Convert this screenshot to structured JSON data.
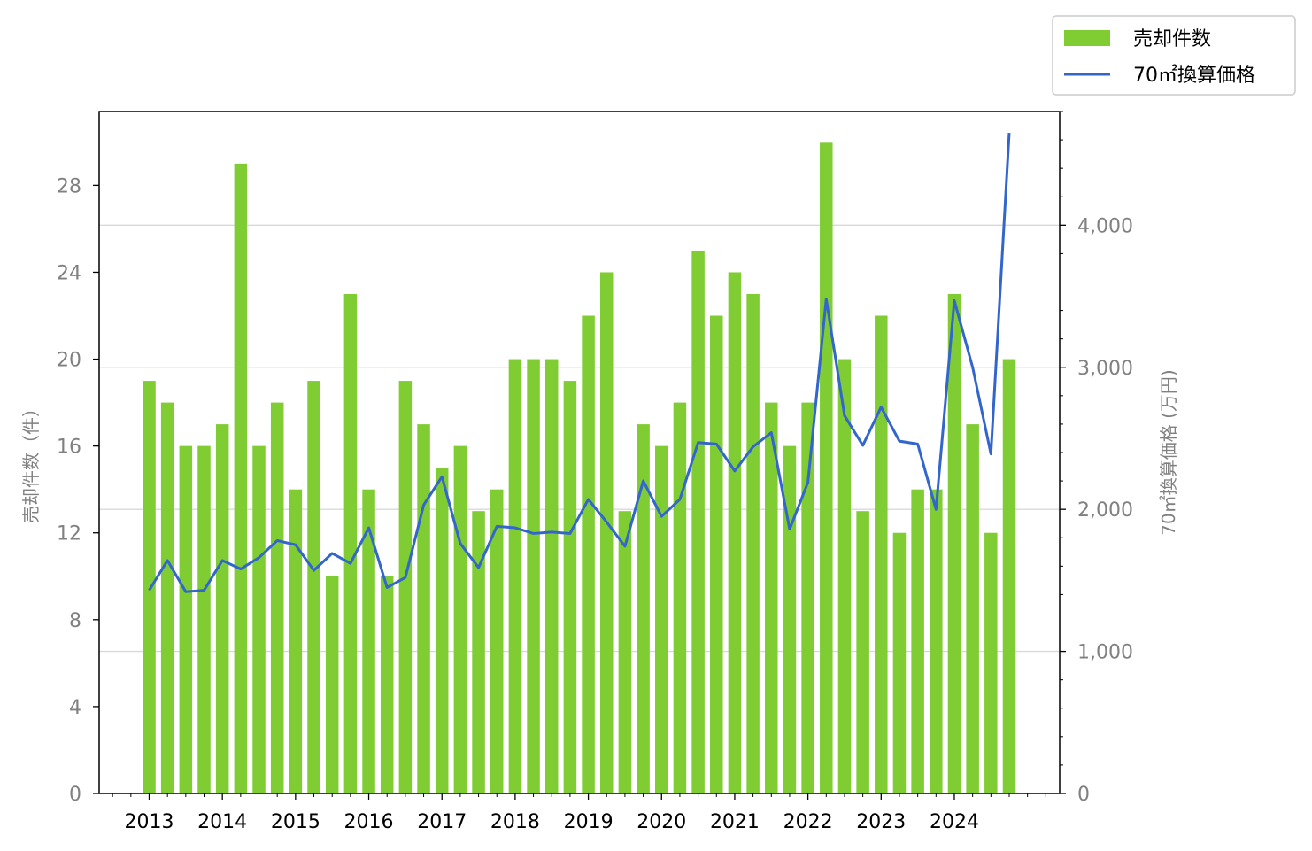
{
  "chart_data": {
    "type": "bar",
    "x_start": 2013,
    "points_per_year": 4,
    "xticks": [
      "2013",
      "2014",
      "2015",
      "2016",
      "2017",
      "2018",
      "2019",
      "2020",
      "2021",
      "2022",
      "2023",
      "2024"
    ],
    "ylabel_left": "売却件数（件）",
    "ylabel_right": "70㎡換算価格 (万円)",
    "yticks_left": [
      "0",
      "4",
      "8",
      "12",
      "16",
      "20",
      "24",
      "28"
    ],
    "yticks_right": [
      "0",
      "1,000",
      "2,000",
      "3,000",
      "4,000"
    ],
    "ylim_left": [
      0,
      31.4
    ],
    "ylim_right": [
      0,
      4800
    ],
    "grid": "horizontal, right axis",
    "legend_position": "top-right",
    "colors": {
      "bar": "#7FCC33",
      "line": "#3366CC",
      "grid": "#d9d9d9"
    },
    "series": [
      {
        "name": "売却件数",
        "type": "bar",
        "axis": "left",
        "values": [
          19,
          18,
          16,
          16,
          17,
          29,
          16,
          18,
          14,
          19,
          10,
          23,
          14,
          10,
          19,
          17,
          15,
          16,
          13,
          14,
          20,
          20,
          20,
          19,
          22,
          24,
          13,
          17,
          16,
          18,
          25,
          22,
          24,
          23,
          18,
          16,
          18,
          30,
          20,
          13,
          22,
          12,
          14,
          14,
          23,
          17,
          12,
          20
        ]
      },
      {
        "name": "70㎡換算価格",
        "type": "line",
        "axis": "right",
        "values": [
          1430,
          1640,
          1420,
          1430,
          1640,
          1580,
          1660,
          1780,
          1750,
          1570,
          1690,
          1620,
          1870,
          1450,
          1520,
          2030,
          2230,
          1760,
          1590,
          1880,
          1870,
          1830,
          1840,
          1830,
          2070,
          1910,
          1740,
          2200,
          1950,
          2070,
          2470,
          2460,
          2270,
          2440,
          2540,
          1860,
          2190,
          3480,
          2660,
          2450,
          2720,
          2480,
          2460,
          2000,
          3470,
          3000,
          2390,
          4650
        ]
      }
    ]
  }
}
